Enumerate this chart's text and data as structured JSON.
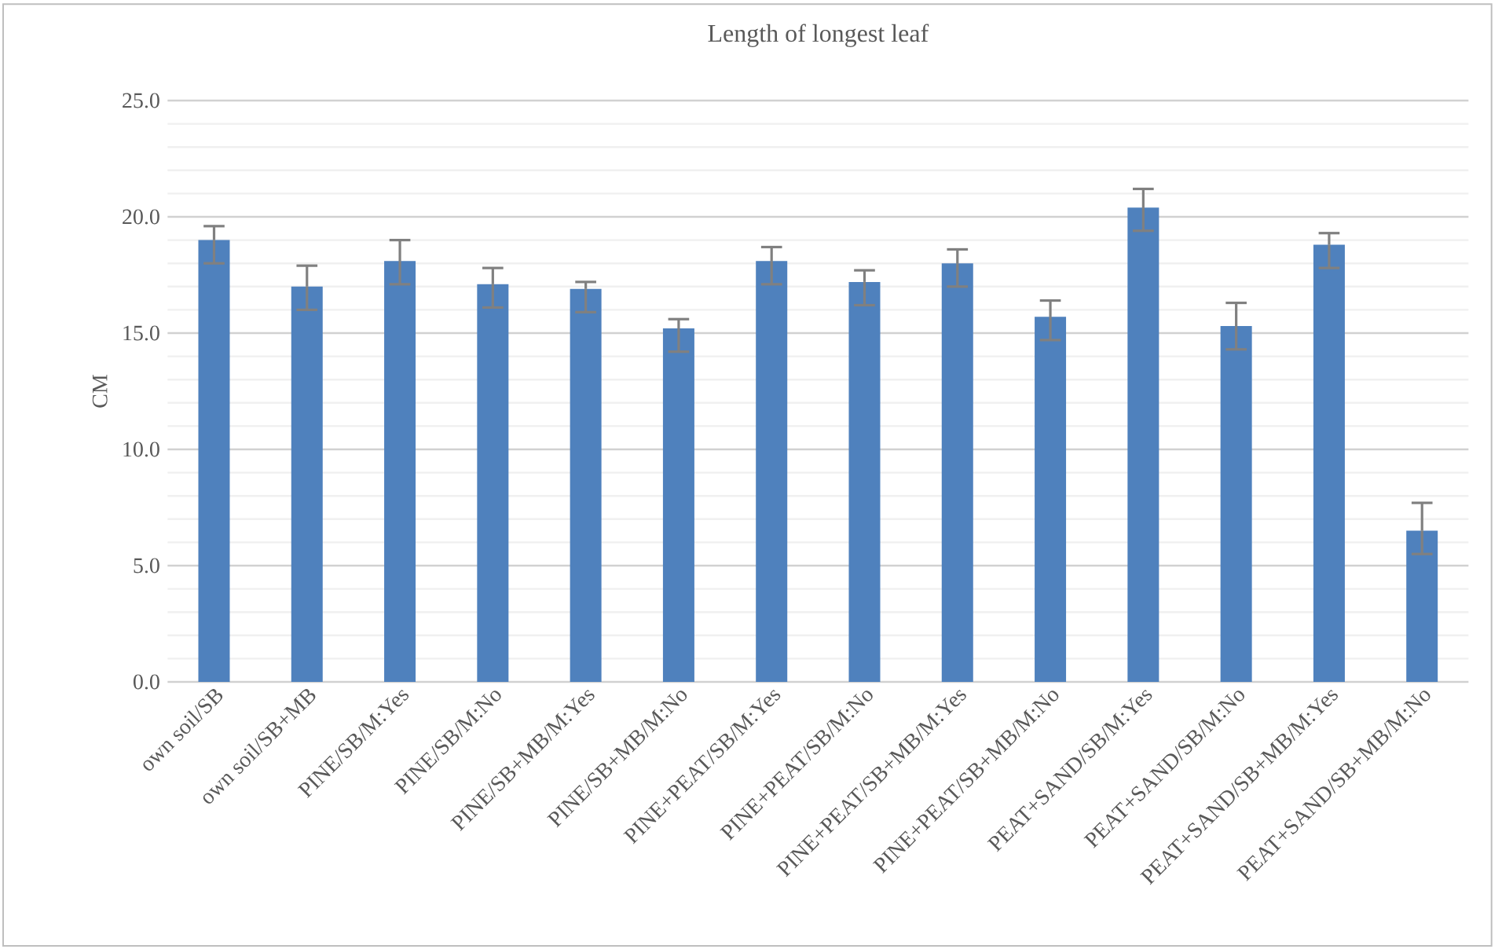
{
  "chart_data": {
    "type": "bar",
    "title": "Length of longest leaf",
    "ylabel": "CM",
    "categories": [
      "own soil/SB",
      "own soil/SB+MB",
      "PINE/SB/M:Yes",
      "PINE/SB/M:No",
      "PINE/SB+MB/M:Yes",
      "PINE/SB+MB/M:No",
      "PINE+PEAT/SB/M:Yes",
      "PINE+PEAT/SB/M:No",
      "PINE+PEAT/SB+MB/M:Yes",
      "PINE+PEAT/SB+MB/M:No",
      "PEAT+SAND/SB/M:Yes",
      "PEAT+SAND/SB/M:No",
      "PEAT+SAND/SB+MB/M:Yes",
      "PEAT+SAND/SB+MB/M:No"
    ],
    "values": [
      19.0,
      17.0,
      18.1,
      17.1,
      16.9,
      15.2,
      18.1,
      17.2,
      18.0,
      15.7,
      20.4,
      15.3,
      18.8,
      6.5
    ],
    "errors": [
      [
        18.0,
        19.6
      ],
      [
        16.0,
        17.9
      ],
      [
        17.1,
        19.0
      ],
      [
        16.1,
        17.8
      ],
      [
        15.9,
        17.2
      ],
      [
        14.2,
        15.6
      ],
      [
        17.1,
        18.7
      ],
      [
        16.2,
        17.7
      ],
      [
        17.0,
        18.6
      ],
      [
        14.7,
        16.4
      ],
      [
        19.4,
        21.2
      ],
      [
        14.3,
        16.3
      ],
      [
        17.8,
        19.3
      ],
      [
        5.5,
        7.7
      ]
    ],
    "color": "#4f81bd",
    "ylim": [
      0,
      25
    ],
    "yticks": [
      {
        "value": 0,
        "label": "0.0"
      },
      {
        "value": 5,
        "label": "5.0"
      },
      {
        "value": 10,
        "label": "10.0"
      },
      {
        "value": 15,
        "label": "15.0"
      },
      {
        "value": 20,
        "label": "20.0"
      },
      {
        "value": 25,
        "label": "25.0"
      }
    ],
    "grid": "y"
  }
}
